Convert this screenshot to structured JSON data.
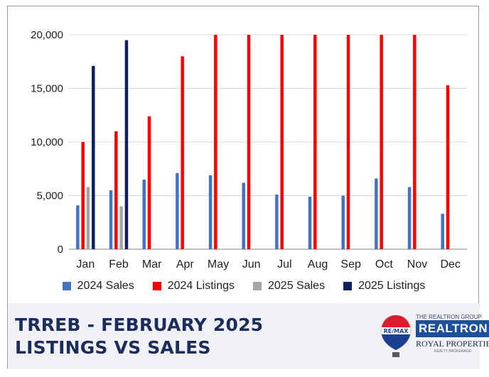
{
  "chart_data": {
    "type": "bar",
    "categories": [
      "Jan",
      "Feb",
      "Mar",
      "Apr",
      "May",
      "Jun",
      "Jul",
      "Aug",
      "Sep",
      "Oct",
      "Nov",
      "Dec"
    ],
    "ylim": [
      0,
      20000
    ],
    "yticks": [
      0,
      5000,
      10000,
      15000,
      20000
    ],
    "ytick_labels": [
      "0",
      "5,000",
      "10,000",
      "15,000",
      "20,000"
    ],
    "grid": true,
    "legend_position": "bottom",
    "series": [
      {
        "name": "2024 Sales",
        "color": "#4472c4",
        "values": [
          4100,
          5500,
          6500,
          7100,
          6900,
          6200,
          5100,
          4900,
          5000,
          6600,
          5800,
          3300
        ]
      },
      {
        "name": "2024 Listings",
        "color": "#ff0000",
        "values": [
          10000,
          11000,
          12400,
          18000,
          20000,
          20000,
          20000,
          20000,
          20000,
          20000,
          20000,
          15300
        ]
      },
      {
        "name": "2025 Sales",
        "color": "#a5a5a5",
        "values": [
          5800,
          4000,
          null,
          null,
          null,
          null,
          null,
          null,
          null,
          null,
          null,
          null
        ]
      },
      {
        "name": "2025 Listings",
        "color": "#0b2060",
        "values": [
          17100,
          19500,
          null,
          null,
          null,
          null,
          null,
          null,
          null,
          null,
          null,
          null
        ]
      }
    ]
  },
  "title": {
    "line1": "TRREB - FEBRUARY 2025",
    "line2": "LISTINGS VS SALES"
  },
  "logo": {
    "remax_text": "RE/MAX",
    "group_text": "THE REALTRON GROUP",
    "realtron_text": "REALTRON",
    "royal_text": "ROYAL PROPERTIES",
    "small_text": "REALTY BROKERAGE"
  }
}
